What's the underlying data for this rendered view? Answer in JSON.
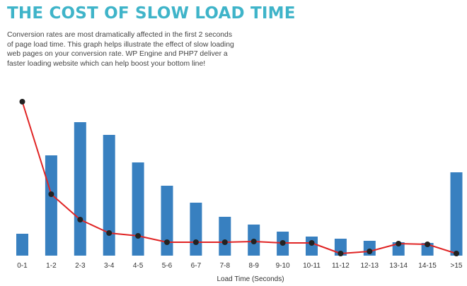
{
  "header": {
    "title": "THE COST OF SLOW LOAD TIME",
    "description": "Conversion rates are most dramatically affected in the first 2 seconds of page load time. This graph helps illustrate the effect of slow loading web pages on your conversion rate. WP Engine and PHP7 deliver a faster loading website which can help boost your bottom line!"
  },
  "chart_data": {
    "type": "bar",
    "xlabel": "Load Time (Seconds)",
    "ylabel": "",
    "grid": false,
    "legend": "none",
    "categories": [
      "0-1",
      "1-2",
      "2-3",
      "3-4",
      "4-5",
      "5-6",
      "6-7",
      "7-8",
      "8-9",
      "9-10",
      "10-11",
      "11-12",
      "12-13",
      "13-14",
      "14-15",
      ">15"
    ],
    "series": [
      {
        "type": "bar",
        "color": "#3880c0",
        "values": [
          31,
          142,
          189,
          171,
          132,
          99,
          75,
          55,
          44,
          34,
          27,
          24,
          21,
          19,
          18,
          118
        ]
      },
      {
        "type": "line",
        "color": "#e02424",
        "marker_color": "#222222",
        "values": [
          218,
          87,
          51,
          32,
          28,
          19,
          19,
          19,
          20,
          18,
          18,
          3,
          6,
          17,
          16,
          3
        ]
      }
    ]
  }
}
